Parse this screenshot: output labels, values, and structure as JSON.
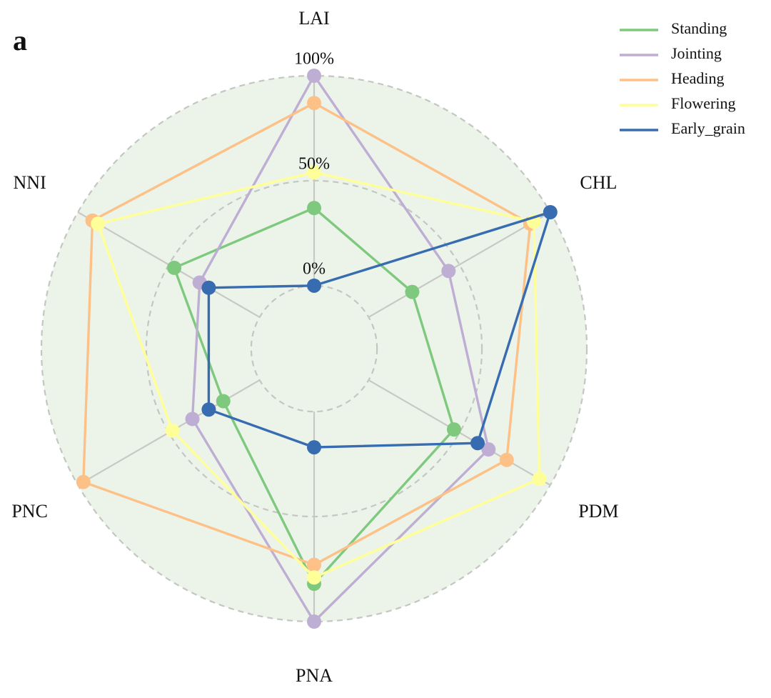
{
  "chart_data": {
    "type": "radar",
    "panel_label": "a",
    "axes": [
      "LAI",
      "CHL",
      "PDM",
      "PNA",
      "PNC",
      "NNI"
    ],
    "r_ticks": [
      {
        "value": 0,
        "label": "0%"
      },
      {
        "value": 50,
        "label": "50%"
      },
      {
        "value": 100,
        "label": "100%"
      }
    ],
    "r_range": [
      -30,
      100
    ],
    "grid": true,
    "legend_position": "top-right",
    "series": [
      {
        "name": "Standing",
        "color": "#7fc97f",
        "values": [
          37,
          24,
          47,
          82,
          20,
          47
        ]
      },
      {
        "name": "Jointing",
        "color": "#beaed4",
        "values": [
          100,
          44,
          66,
          100,
          37,
          33
        ]
      },
      {
        "name": "Heading",
        "color": "#fdc086",
        "values": [
          87,
          89,
          76,
          73,
          97,
          92
        ]
      },
      {
        "name": "Flowering",
        "color": "#ffff99",
        "values": [
          54,
          91,
          94,
          79,
          48,
          89
        ]
      },
      {
        "name": "Early_grain",
        "color": "#386cb0",
        "values": [
          0,
          100,
          60,
          17,
          28,
          28
        ]
      }
    ]
  }
}
